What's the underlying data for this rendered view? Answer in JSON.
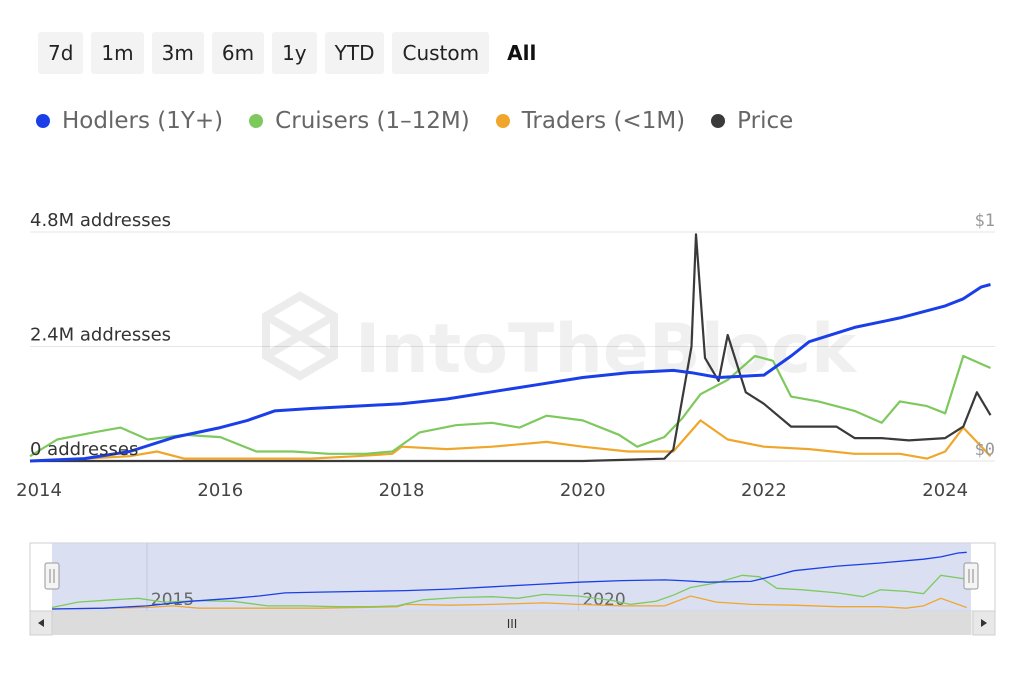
{
  "range_selector": {
    "buttons": [
      "7d",
      "1m",
      "3m",
      "6m",
      "1y",
      "YTD",
      "Custom",
      "All"
    ],
    "selected": "All"
  },
  "colors": {
    "hodlers": "#1a3fe8",
    "cruisers": "#7dc95e",
    "traders": "#f0a62a",
    "price": "#3a3a3a",
    "navigator_fill": "#cdd6ec",
    "scrollbar": "#dcdcdc"
  },
  "watermark": "IntoTheBlock",
  "chart_data": {
    "type": "line",
    "legend_position": "top-left",
    "grid": true,
    "series": [
      {
        "name": "Hodlers (1Y+)",
        "x": [
          2013.9,
          2014.5,
          2015.0,
          2015.5,
          2016.0,
          2016.3,
          2016.6,
          2017.0,
          2017.5,
          2018.0,
          2018.5,
          2019.0,
          2019.5,
          2020.0,
          2020.5,
          2021.0,
          2021.2,
          2021.5,
          2022.0,
          2022.3,
          2022.5,
          2023.0,
          2023.5,
          2024.0,
          2024.2,
          2024.4,
          2024.5
        ],
        "values": [
          0.0,
          0.05,
          0.2,
          0.5,
          0.7,
          0.85,
          1.05,
          1.1,
          1.15,
          1.2,
          1.3,
          1.45,
          1.6,
          1.75,
          1.85,
          1.9,
          1.85,
          1.75,
          1.8,
          2.2,
          2.5,
          2.8,
          3.0,
          3.25,
          3.4,
          3.65,
          3.7
        ]
      },
      {
        "name": "Cruisers (1–12M)",
        "x": [
          2013.9,
          2014.2,
          2014.6,
          2014.9,
          2015.2,
          2015.6,
          2016.0,
          2016.4,
          2016.8,
          2017.2,
          2017.6,
          2017.9,
          2018.2,
          2018.6,
          2019.0,
          2019.3,
          2019.6,
          2020.0,
          2020.4,
          2020.6,
          2020.9,
          2021.1,
          2021.3,
          2021.6,
          2021.9,
          2022.1,
          2022.3,
          2022.6,
          2023.0,
          2023.3,
          2023.5,
          2023.8,
          2024.0,
          2024.2,
          2024.5
        ],
        "values": [
          0.1,
          0.45,
          0.6,
          0.7,
          0.45,
          0.55,
          0.5,
          0.2,
          0.2,
          0.15,
          0.15,
          0.2,
          0.6,
          0.75,
          0.8,
          0.7,
          0.95,
          0.85,
          0.55,
          0.3,
          0.5,
          0.9,
          1.4,
          1.7,
          2.2,
          2.1,
          1.35,
          1.25,
          1.05,
          0.8,
          1.25,
          1.15,
          1.0,
          2.2,
          1.95
        ]
      },
      {
        "name": "Traders (<1M)",
        "x": [
          2013.9,
          2014.5,
          2015.0,
          2015.3,
          2015.6,
          2016.0,
          2016.5,
          2017.0,
          2017.5,
          2017.9,
          2018.0,
          2018.5,
          2019.0,
          2019.3,
          2019.6,
          2020.0,
          2020.5,
          2021.0,
          2021.3,
          2021.6,
          2022.0,
          2022.5,
          2023.0,
          2023.5,
          2023.8,
          2024.0,
          2024.2,
          2024.5
        ],
        "values": [
          0.0,
          0.05,
          0.1,
          0.2,
          0.05,
          0.05,
          0.05,
          0.05,
          0.1,
          0.15,
          0.3,
          0.25,
          0.3,
          0.35,
          0.4,
          0.3,
          0.2,
          0.2,
          0.85,
          0.45,
          0.3,
          0.25,
          0.15,
          0.15,
          0.05,
          0.2,
          0.7,
          0.1
        ]
      },
      {
        "name": "Price",
        "x": [
          2013.9,
          2016.0,
          2018.0,
          2020.0,
          2020.9,
          2021.0,
          2021.2,
          2021.25,
          2021.35,
          2021.5,
          2021.6,
          2021.8,
          2022.0,
          2022.3,
          2022.5,
          2022.8,
          2023.0,
          2023.3,
          2023.6,
          2024.0,
          2024.2,
          2024.35,
          2024.5
        ],
        "values": [
          0.0,
          0.0,
          0.0,
          0.0,
          0.01,
          0.05,
          0.5,
          0.99,
          0.45,
          0.35,
          0.55,
          0.3,
          0.25,
          0.15,
          0.15,
          0.15,
          0.1,
          0.1,
          0.09,
          0.1,
          0.15,
          0.3,
          0.2
        ]
      }
    ],
    "y_axis_left": {
      "ticks": [
        0,
        2.4,
        4.8
      ],
      "labels": [
        "0 addresses",
        "2.4M addresses",
        "4.8M addresses"
      ],
      "range": [
        0,
        4.8
      ]
    },
    "y_axis_right": {
      "ticks": [
        0,
        1
      ],
      "labels": [
        "$0",
        "$1"
      ],
      "range": [
        0,
        1
      ]
    },
    "x_axis": {
      "range": [
        2013.9,
        2024.55
      ],
      "ticks": [
        2014,
        2016,
        2018,
        2020,
        2022,
        2024
      ],
      "labels": [
        "2014",
        "2016",
        "2018",
        "2020",
        "2022",
        "2024"
      ]
    },
    "navigator": {
      "labels": [
        "2015",
        "2020"
      ],
      "label_x": [
        2015,
        2020
      ],
      "scroll_grip": "III"
    }
  }
}
